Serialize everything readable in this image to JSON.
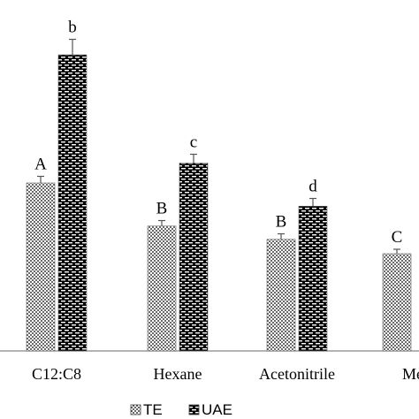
{
  "chart_data": {
    "type": "bar",
    "title": "",
    "xlabel": "",
    "ylabel": "",
    "ylim": [
      0,
      300
    ],
    "grid": false,
    "legend_position": "bottom",
    "categories": [
      "C12:C8",
      "Hexane",
      "Acetonitrile",
      "Me"
    ],
    "series": [
      {
        "name": "TE",
        "pattern": "dots",
        "values": [
          152,
          113,
          101,
          88
        ],
        "errors": [
          6,
          5,
          5,
          4
        ],
        "labels": [
          "A",
          "B",
          "B",
          "C"
        ]
      },
      {
        "name": "UAE",
        "pattern": "bricks",
        "values": [
          268,
          170,
          131,
          null
        ],
        "errors": [
          14,
          8,
          7,
          null
        ],
        "labels": [
          "b",
          "c",
          "d",
          ""
        ]
      }
    ]
  }
}
